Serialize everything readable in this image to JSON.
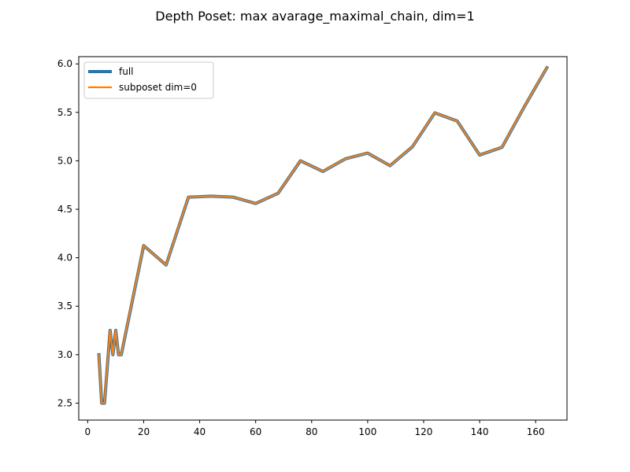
{
  "chart_data": {
    "type": "line",
    "title": "Depth Poset: max avarage_maximal_chain, dim=1",
    "xlabel": "",
    "ylabel": "",
    "xlim": [
      -3.2,
      171.2
    ],
    "ylim": [
      2.325,
      6.075
    ],
    "xticks": [
      0,
      20,
      40,
      60,
      80,
      100,
      120,
      140,
      160
    ],
    "xtick_labels": [
      "0",
      "20",
      "40",
      "60",
      "80",
      "100",
      "120",
      "140",
      "160"
    ],
    "yticks": [
      2.5,
      3.0,
      3.5,
      4.0,
      4.5,
      5.0,
      5.5,
      6.0
    ],
    "ytick_labels": [
      "2.5",
      "3.0",
      "3.5",
      "4.0",
      "4.5",
      "5.0",
      "5.5",
      "6.0"
    ],
    "grid": false,
    "legend_position": "top-left",
    "series": [
      {
        "name": "full",
        "color": "#1f77b4",
        "x": [
          4,
          5,
          6,
          8,
          9,
          10,
          11,
          12,
          20,
          28,
          36,
          44,
          52,
          60,
          68,
          76,
          84,
          92,
          100,
          108,
          116,
          124,
          132,
          140,
          148,
          156,
          164
        ],
        "y": [
          3.0,
          2.5,
          2.5,
          3.25,
          3.0,
          3.25,
          3.0,
          3.0,
          4.125,
          3.925,
          4.625,
          4.635,
          4.625,
          4.56,
          4.665,
          5.0,
          4.89,
          5.02,
          5.08,
          4.95,
          5.145,
          5.495,
          5.41,
          5.06,
          5.14,
          5.56,
          5.96
        ]
      },
      {
        "name": "subposet dim=0",
        "color": "#ff7f0e",
        "x": [
          4,
          5,
          6,
          8,
          9,
          10,
          11,
          12,
          20,
          28,
          36,
          44,
          52,
          60,
          68,
          76,
          84,
          92,
          100,
          108,
          116,
          124,
          132,
          140,
          148,
          156,
          164
        ],
        "y": [
          3.0,
          2.5,
          2.5,
          3.25,
          3.0,
          3.25,
          3.0,
          3.0,
          4.125,
          3.925,
          4.625,
          4.635,
          4.625,
          4.56,
          4.665,
          5.0,
          4.89,
          5.02,
          5.08,
          4.95,
          5.145,
          5.495,
          5.41,
          5.06,
          5.14,
          5.56,
          5.96
        ]
      }
    ]
  }
}
